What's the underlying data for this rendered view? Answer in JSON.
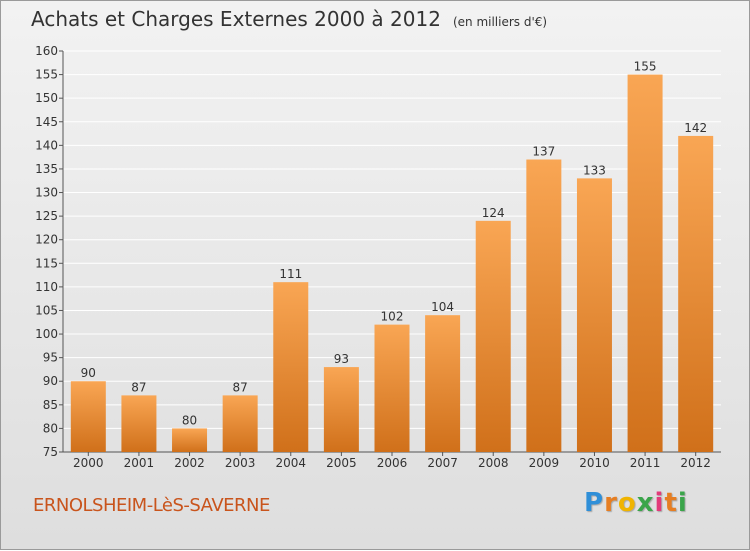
{
  "title": "Achats et Charges Externes 2000 à 2012",
  "title_unit": "(en milliers d'€)",
  "commune": "ERNOLSHEIM-LèS-SAVERNE",
  "brand": {
    "letters": [
      "P",
      "r",
      "o",
      "x",
      "i",
      "t",
      "i"
    ],
    "colors": [
      "#2f8fd8",
      "#e67e22",
      "#f0b400",
      "#3aa54a",
      "#e23b7a",
      "#e67e22",
      "#3aa54a"
    ]
  },
  "colors": {
    "bar_light": "#f9a654",
    "bar_dark": "#d0701a",
    "grid": "#ffffff",
    "axis_text": "#333333"
  },
  "chart_data": {
    "type": "bar",
    "categories": [
      "2000",
      "2001",
      "2002",
      "2003",
      "2004",
      "2005",
      "2006",
      "2007",
      "2008",
      "2009",
      "2010",
      "2011",
      "2012"
    ],
    "values": [
      90,
      87,
      80,
      87,
      111,
      93,
      102,
      104,
      124,
      137,
      133,
      155,
      142
    ],
    "ylim": [
      75,
      160
    ],
    "yticks": [
      75,
      80,
      85,
      90,
      95,
      100,
      105,
      110,
      115,
      120,
      125,
      130,
      135,
      140,
      145,
      150,
      155,
      160
    ],
    "grid": true,
    "data_labels": true
  }
}
